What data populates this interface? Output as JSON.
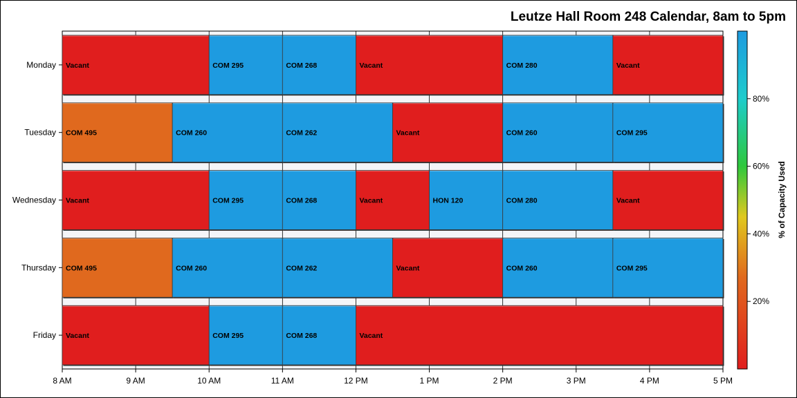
{
  "chart_data": {
    "type": "bar",
    "title": "Leutze Hall Room 248 Calendar, 8am to 5pm",
    "xlim": [
      8,
      17
    ],
    "x_ticks": [
      {
        "value": 8,
        "label": "8 AM"
      },
      {
        "value": 9,
        "label": "9 AM"
      },
      {
        "value": 10,
        "label": "10 AM"
      },
      {
        "value": 11,
        "label": "11 AM"
      },
      {
        "value": 12,
        "label": "12 PM"
      },
      {
        "value": 13,
        "label": "1 PM"
      },
      {
        "value": 14,
        "label": "2 PM"
      },
      {
        "value": 15,
        "label": "3 PM"
      },
      {
        "value": 16,
        "label": "4 PM"
      },
      {
        "value": 17,
        "label": "5 PM"
      }
    ],
    "categories": [
      "Monday",
      "Tuesday",
      "Wednesday",
      "Thursday",
      "Friday"
    ],
    "rows": [
      {
        "day": "Monday",
        "segments": [
          {
            "label": "Vacant",
            "start": 8,
            "end": 10,
            "capacity": 0
          },
          {
            "label": "COM 295",
            "start": 10,
            "end": 11,
            "capacity": 100
          },
          {
            "label": "COM 268",
            "start": 11,
            "end": 12,
            "capacity": 100
          },
          {
            "label": "Vacant",
            "start": 12,
            "end": 14,
            "capacity": 0
          },
          {
            "label": "COM 280",
            "start": 14,
            "end": 15.5,
            "capacity": 100
          },
          {
            "label": "Vacant",
            "start": 15.5,
            "end": 17,
            "capacity": 0
          }
        ]
      },
      {
        "day": "Tuesday",
        "segments": [
          {
            "label": "COM 495",
            "start": 8,
            "end": 9.5,
            "capacity": 27
          },
          {
            "label": "COM 260",
            "start": 9.5,
            "end": 11,
            "capacity": 100
          },
          {
            "label": "COM 262",
            "start": 11,
            "end": 12.5,
            "capacity": 100
          },
          {
            "label": "Vacant",
            "start": 12.5,
            "end": 14,
            "capacity": 0
          },
          {
            "label": "COM 260",
            "start": 14,
            "end": 15.5,
            "capacity": 100
          },
          {
            "label": "COM 295",
            "start": 15.5,
            "end": 17,
            "capacity": 100
          }
        ]
      },
      {
        "day": "Wednesday",
        "segments": [
          {
            "label": "Vacant",
            "start": 8,
            "end": 10,
            "capacity": 0
          },
          {
            "label": "COM 295",
            "start": 10,
            "end": 11,
            "capacity": 100
          },
          {
            "label": "COM 268",
            "start": 11,
            "end": 12,
            "capacity": 100
          },
          {
            "label": "Vacant",
            "start": 12,
            "end": 13,
            "capacity": 0
          },
          {
            "label": "HON 120",
            "start": 13,
            "end": 14,
            "capacity": 100
          },
          {
            "label": "COM 280",
            "start": 14,
            "end": 15.5,
            "capacity": 100
          },
          {
            "label": "Vacant",
            "start": 15.5,
            "end": 17,
            "capacity": 0
          }
        ]
      },
      {
        "day": "Thursday",
        "segments": [
          {
            "label": "COM 495",
            "start": 8,
            "end": 9.5,
            "capacity": 27
          },
          {
            "label": "COM 260",
            "start": 9.5,
            "end": 11,
            "capacity": 100
          },
          {
            "label": "COM 262",
            "start": 11,
            "end": 12.5,
            "capacity": 100
          },
          {
            "label": "Vacant",
            "start": 12.5,
            "end": 14,
            "capacity": 0
          },
          {
            "label": "COM 260",
            "start": 14,
            "end": 15.5,
            "capacity": 100
          },
          {
            "label": "COM 295",
            "start": 15.5,
            "end": 17,
            "capacity": 100
          }
        ]
      },
      {
        "day": "Friday",
        "segments": [
          {
            "label": "Vacant",
            "start": 8,
            "end": 10,
            "capacity": 0
          },
          {
            "label": "COM 295",
            "start": 10,
            "end": 11,
            "capacity": 100
          },
          {
            "label": "COM 268",
            "start": 11,
            "end": 12,
            "capacity": 100
          },
          {
            "label": "Vacant",
            "start": 12,
            "end": 17,
            "capacity": 0
          }
        ]
      }
    ],
    "colorbar": {
      "label": "% of Capacity Used",
      "range": [
        0,
        100
      ],
      "ticks": [
        {
          "value": 20,
          "label": "20%"
        },
        {
          "value": 40,
          "label": "40%"
        },
        {
          "value": 60,
          "label": "60%"
        },
        {
          "value": 80,
          "label": "80%"
        }
      ],
      "stops": [
        {
          "value": 0,
          "color": "#e01e1e"
        },
        {
          "value": 27,
          "color": "#e0691e"
        },
        {
          "value": 45,
          "color": "#e0c81e"
        },
        {
          "value": 60,
          "color": "#2ec83c"
        },
        {
          "value": 80,
          "color": "#1ecccc"
        },
        {
          "value": 100,
          "color": "#1e9be0"
        }
      ]
    },
    "legend": "right",
    "grid": true
  }
}
